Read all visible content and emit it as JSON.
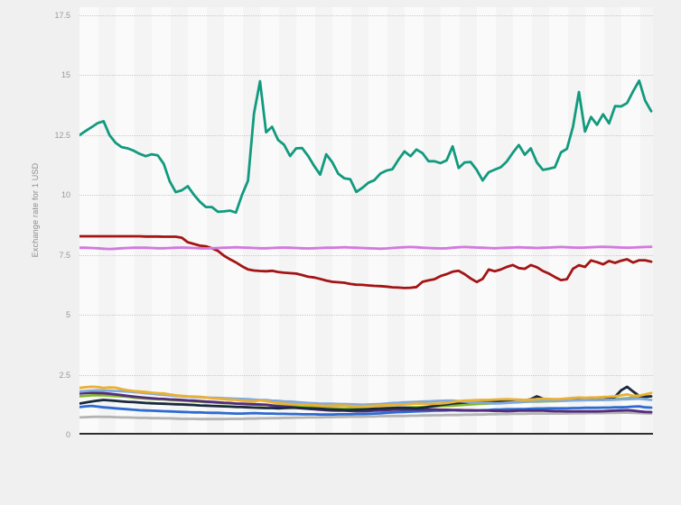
{
  "canvas": {
    "background": "#f0f0f0",
    "plot_stripe_light": "#fafafa",
    "plot_stripe_dark": "#f4f4f4",
    "gridline_color": "#c9c9c9",
    "axis_line_color": "#2e2e2e"
  },
  "yticks": {
    "labels": [
      "17.5",
      "15",
      "12.5",
      "10",
      "7.5",
      "5",
      "2.5",
      "0"
    ]
  },
  "chart_data": {
    "type": "line",
    "title": "",
    "ylabel": "Exchange rate for 1 USD",
    "xlabel": "",
    "ylim": [
      0,
      17.5
    ],
    "yticks": [
      0,
      2.5,
      5,
      7.5,
      10,
      12.5,
      15,
      17.5
    ],
    "grid": "horizontal-dotted",
    "legend": "none",
    "x_axis": {
      "tick_labels_visible": false,
      "num_points": 96
    },
    "series": [
      {
        "name": "gray",
        "color": "#b4b4b4",
        "values": [
          0.72,
          0.73,
          0.74,
          0.75,
          0.74,
          0.74,
          0.73,
          0.72,
          0.72,
          0.71,
          0.7,
          0.7,
          0.69,
          0.69,
          0.68,
          0.68,
          0.67,
          0.66,
          0.66,
          0.66,
          0.65,
          0.65,
          0.65,
          0.65,
          0.65,
          0.66,
          0.66,
          0.66,
          0.67,
          0.67,
          0.68,
          0.68,
          0.69,
          0.69,
          0.7,
          0.7,
          0.71,
          0.71,
          0.72,
          0.72,
          0.72,
          0.73,
          0.73,
          0.74,
          0.74,
          0.75,
          0.75,
          0.75,
          0.76,
          0.76,
          0.77,
          0.77,
          0.78,
          0.78,
          0.78,
          0.79,
          0.79,
          0.8,
          0.8,
          0.81,
          0.81,
          0.82,
          0.82,
          0.82,
          0.83,
          0.83,
          0.84,
          0.84,
          0.85,
          0.85,
          0.86,
          0.86,
          0.87,
          0.87,
          0.87,
          0.88,
          0.88,
          0.88,
          0.88,
          0.88,
          0.88,
          0.88,
          0.89,
          0.89,
          0.89,
          0.9,
          0.9,
          0.9,
          0.91,
          0.91,
          0.92,
          0.92,
          0.91,
          0.9,
          0.89,
          0.88
        ]
      },
      {
        "name": "blue",
        "color": "#2e6bd0",
        "values": [
          1.15,
          1.18,
          1.2,
          1.17,
          1.14,
          1.12,
          1.1,
          1.08,
          1.06,
          1.04,
          1.02,
          1.01,
          1.0,
          0.99,
          0.98,
          0.97,
          0.96,
          0.95,
          0.94,
          0.93,
          0.93,
          0.92,
          0.91,
          0.91,
          0.9,
          0.89,
          0.88,
          0.88,
          0.89,
          0.9,
          0.89,
          0.88,
          0.88,
          0.87,
          0.87,
          0.86,
          0.86,
          0.85,
          0.85,
          0.85,
          0.84,
          0.84,
          0.84,
          0.85,
          0.85,
          0.85,
          0.86,
          0.86,
          0.87,
          0.88,
          0.89,
          0.91,
          0.93,
          0.94,
          0.95,
          0.96,
          0.97,
          0.98,
          0.99,
          1.0,
          1.0,
          1.01,
          1.02,
          1.01,
          1.01,
          1.0,
          1.01,
          1.02,
          1.03,
          1.05,
          1.05,
          1.06,
          1.06,
          1.07,
          1.07,
          1.08,
          1.09,
          1.09,
          1.1,
          1.1,
          1.1,
          1.1,
          1.11,
          1.11,
          1.12,
          1.12,
          1.12,
          1.13,
          1.13,
          1.14,
          1.14,
          1.15,
          1.17,
          1.18,
          1.14,
          1.13
        ]
      },
      {
        "name": "apple-green",
        "color": "#83b828",
        "values": [
          1.6,
          1.62,
          1.64,
          1.65,
          1.64,
          1.63,
          1.61,
          1.6,
          1.58,
          1.55,
          1.53,
          1.51,
          1.49,
          1.48,
          1.47,
          1.45,
          1.44,
          1.42,
          1.41,
          1.39,
          1.38,
          1.36,
          1.35,
          1.33,
          1.32,
          1.31,
          1.3,
          1.28,
          1.27,
          1.26,
          1.25,
          1.24,
          1.22,
          1.21,
          1.19,
          1.18,
          1.17,
          1.15,
          1.14,
          1.13,
          1.11,
          1.11,
          1.1,
          1.1,
          1.09,
          1.09,
          1.08,
          1.08,
          1.08,
          1.09,
          1.1,
          1.11,
          1.12,
          1.12,
          1.13,
          1.14,
          1.14,
          1.15,
          1.16,
          1.17,
          1.19,
          1.2,
          1.21,
          1.23,
          1.25,
          1.26,
          1.28,
          1.29,
          1.3,
          1.31,
          1.32,
          1.33,
          1.34,
          1.35,
          1.37,
          1.38,
          1.38,
          1.39,
          1.4,
          1.4,
          1.41,
          1.42,
          1.43,
          1.44,
          1.44,
          1.45,
          1.46,
          1.47,
          1.48,
          1.49,
          1.5,
          1.52,
          1.53,
          1.55,
          1.58,
          1.6
        ]
      },
      {
        "name": "purple",
        "color": "#542c7d",
        "values": [
          1.72,
          1.74,
          1.75,
          1.74,
          1.73,
          1.71,
          1.68,
          1.65,
          1.62,
          1.59,
          1.56,
          1.54,
          1.52,
          1.5,
          1.49,
          1.47,
          1.46,
          1.45,
          1.43,
          1.42,
          1.4,
          1.38,
          1.37,
          1.35,
          1.33,
          1.32,
          1.3,
          1.29,
          1.28,
          1.27,
          1.26,
          1.25,
          1.22,
          1.19,
          1.17,
          1.15,
          1.12,
          1.1,
          1.08,
          1.06,
          1.04,
          1.02,
          1.01,
          1.0,
          1.0,
          0.99,
          0.98,
          0.98,
          0.99,
          1.0,
          1.01,
          1.02,
          1.04,
          1.05,
          1.05,
          1.05,
          1.05,
          1.05,
          1.05,
          1.05,
          1.04,
          1.04,
          1.03,
          1.03,
          1.02,
          1.02,
          1.01,
          1.01,
          1.0,
          0.99,
          0.99,
          0.98,
          0.99,
          1.0,
          1.0,
          1.0,
          1.0,
          1.0,
          0.99,
          0.98,
          0.98,
          0.97,
          0.97,
          0.97,
          0.97,
          0.97,
          0.97,
          0.98,
          0.99,
          1.0,
          1.01,
          1.02,
          1.0,
          0.97,
          0.95,
          0.94
        ]
      },
      {
        "name": "navy",
        "color": "#182a3d",
        "values": [
          1.3,
          1.34,
          1.38,
          1.42,
          1.45,
          1.43,
          1.41,
          1.39,
          1.37,
          1.36,
          1.34,
          1.32,
          1.31,
          1.3,
          1.29,
          1.28,
          1.27,
          1.26,
          1.25,
          1.24,
          1.22,
          1.21,
          1.2,
          1.19,
          1.18,
          1.17,
          1.16,
          1.15,
          1.14,
          1.13,
          1.12,
          1.11,
          1.11,
          1.1,
          1.11,
          1.12,
          1.12,
          1.11,
          1.1,
          1.09,
          1.08,
          1.06,
          1.05,
          1.04,
          1.03,
          1.03,
          1.04,
          1.05,
          1.06,
          1.08,
          1.09,
          1.1,
          1.11,
          1.12,
          1.12,
          1.11,
          1.1,
          1.12,
          1.16,
          1.2,
          1.24,
          1.27,
          1.3,
          1.32,
          1.34,
          1.37,
          1.38,
          1.4,
          1.41,
          1.42,
          1.41,
          1.39,
          1.38,
          1.4,
          1.44,
          1.48,
          1.6,
          1.5,
          1.43,
          1.44,
          1.45,
          1.45,
          1.46,
          1.48,
          1.5,
          1.52,
          1.48,
          1.45,
          1.5,
          1.58,
          1.85,
          2.0,
          1.8,
          1.62,
          1.58,
          1.6
        ]
      },
      {
        "name": "light-blue",
        "color": "#80aade",
        "values": [
          1.8,
          1.82,
          1.84,
          1.85,
          1.84,
          1.83,
          1.82,
          1.81,
          1.8,
          1.78,
          1.76,
          1.73,
          1.71,
          1.68,
          1.66,
          1.64,
          1.62,
          1.6,
          1.59,
          1.57,
          1.56,
          1.55,
          1.54,
          1.53,
          1.52,
          1.51,
          1.5,
          1.49,
          1.48,
          1.46,
          1.45,
          1.44,
          1.42,
          1.41,
          1.39,
          1.38,
          1.36,
          1.34,
          1.32,
          1.31,
          1.29,
          1.29,
          1.29,
          1.28,
          1.28,
          1.27,
          1.26,
          1.25,
          1.26,
          1.27,
          1.28,
          1.3,
          1.32,
          1.33,
          1.35,
          1.36,
          1.37,
          1.38,
          1.39,
          1.4,
          1.41,
          1.42,
          1.42,
          1.4,
          1.38,
          1.36,
          1.34,
          1.33,
          1.32,
          1.3,
          1.31,
          1.33,
          1.35,
          1.37,
          1.38,
          1.39,
          1.4,
          1.41,
          1.42,
          1.42,
          1.42,
          1.43,
          1.43,
          1.43,
          1.44,
          1.44,
          1.44,
          1.45,
          1.45,
          1.46,
          1.47,
          1.48,
          1.49,
          1.5,
          1.48,
          1.45
        ]
      },
      {
        "name": "yellow",
        "color": "#eab033",
        "values": [
          1.95,
          1.98,
          2.0,
          1.99,
          1.95,
          1.97,
          1.96,
          1.9,
          1.85,
          1.82,
          1.8,
          1.78,
          1.75,
          1.73,
          1.72,
          1.68,
          1.64,
          1.62,
          1.6,
          1.59,
          1.58,
          1.55,
          1.52,
          1.5,
          1.48,
          1.46,
          1.45,
          1.42,
          1.4,
          1.38,
          1.43,
          1.4,
          1.35,
          1.33,
          1.3,
          1.28,
          1.27,
          1.26,
          1.25,
          1.23,
          1.21,
          1.2,
          1.21,
          1.22,
          1.22,
          1.2,
          1.18,
          1.19,
          1.2,
          1.21,
          1.22,
          1.23,
          1.24,
          1.25,
          1.26,
          1.28,
          1.3,
          1.29,
          1.28,
          1.29,
          1.3,
          1.32,
          1.36,
          1.4,
          1.42,
          1.43,
          1.44,
          1.45,
          1.45,
          1.46,
          1.47,
          1.48,
          1.47,
          1.46,
          1.45,
          1.46,
          1.48,
          1.5,
          1.49,
          1.48,
          1.49,
          1.51,
          1.53,
          1.55,
          1.54,
          1.55,
          1.55,
          1.57,
          1.58,
          1.6,
          1.64,
          1.68,
          1.62,
          1.63,
          1.68,
          1.74
        ]
      },
      {
        "name": "dark-red",
        "color": "#a31414",
        "values": [
          8.28,
          8.28,
          8.28,
          8.28,
          8.28,
          8.28,
          8.28,
          8.28,
          8.28,
          8.28,
          8.28,
          8.27,
          8.27,
          8.27,
          8.26,
          8.26,
          8.26,
          8.22,
          8.03,
          7.96,
          7.89,
          7.86,
          7.78,
          7.67,
          7.47,
          7.32,
          7.19,
          7.03,
          6.9,
          6.85,
          6.83,
          6.82,
          6.84,
          6.79,
          6.76,
          6.74,
          6.72,
          6.66,
          6.59,
          6.56,
          6.5,
          6.43,
          6.38,
          6.36,
          6.34,
          6.29,
          6.26,
          6.25,
          6.23,
          6.21,
          6.2,
          6.18,
          6.15,
          6.14,
          6.12,
          6.13,
          6.16,
          6.38,
          6.44,
          6.49,
          6.62,
          6.7,
          6.8,
          6.84,
          6.7,
          6.52,
          6.37,
          6.5,
          6.89,
          6.82,
          6.89,
          7.0,
          7.08,
          6.95,
          6.92,
          7.08,
          6.99,
          6.83,
          6.72,
          6.58,
          6.45,
          6.49,
          6.92,
          7.07,
          7.0,
          7.27,
          7.2,
          7.11,
          7.25,
          7.17,
          7.26,
          7.32,
          7.18,
          7.28,
          7.28,
          7.22
        ]
      },
      {
        "name": "pink",
        "color": "#d279de",
        "values": [
          7.8,
          7.8,
          7.79,
          7.78,
          7.76,
          7.75,
          7.76,
          7.78,
          7.79,
          7.8,
          7.8,
          7.8,
          7.79,
          7.78,
          7.78,
          7.79,
          7.8,
          7.81,
          7.8,
          7.79,
          7.78,
          7.77,
          7.78,
          7.79,
          7.8,
          7.81,
          7.82,
          7.81,
          7.8,
          7.79,
          7.78,
          7.78,
          7.79,
          7.8,
          7.81,
          7.8,
          7.79,
          7.78,
          7.77,
          7.78,
          7.79,
          7.8,
          7.8,
          7.81,
          7.82,
          7.81,
          7.8,
          7.79,
          7.78,
          7.77,
          7.76,
          7.77,
          7.79,
          7.81,
          7.82,
          7.83,
          7.82,
          7.8,
          7.79,
          7.78,
          7.77,
          7.78,
          7.8,
          7.82,
          7.83,
          7.82,
          7.81,
          7.8,
          7.79,
          7.78,
          7.79,
          7.8,
          7.81,
          7.82,
          7.81,
          7.8,
          7.79,
          7.8,
          7.81,
          7.82,
          7.83,
          7.82,
          7.81,
          7.8,
          7.81,
          7.82,
          7.83,
          7.84,
          7.83,
          7.82,
          7.81,
          7.8,
          7.81,
          7.82,
          7.83,
          7.84
        ]
      },
      {
        "name": "teal",
        "color": "#119a7e",
        "values": [
          12.5,
          12.67,
          12.83,
          13.0,
          13.08,
          12.5,
          12.18,
          12.0,
          11.95,
          11.85,
          11.72,
          11.62,
          11.7,
          11.66,
          11.3,
          10.57,
          10.12,
          10.2,
          10.37,
          10.02,
          9.72,
          9.5,
          9.5,
          9.3,
          9.32,
          9.35,
          9.27,
          10.0,
          10.6,
          13.4,
          14.75,
          12.62,
          12.85,
          12.3,
          12.1,
          11.63,
          11.95,
          11.96,
          11.63,
          11.21,
          10.85,
          11.7,
          11.37,
          10.89,
          10.7,
          10.66,
          10.13,
          10.3,
          10.51,
          10.62,
          10.9,
          11.02,
          11.08,
          11.47,
          11.82,
          11.62,
          11.9,
          11.75,
          11.41,
          11.41,
          11.33,
          11.45,
          12.03,
          11.13,
          11.36,
          11.38,
          11.05,
          10.61,
          10.95,
          11.06,
          11.16,
          11.4,
          11.76,
          12.09,
          11.68,
          11.95,
          11.36,
          11.05,
          11.1,
          11.16,
          11.78,
          11.93,
          12.85,
          14.3,
          12.65,
          13.26,
          12.93,
          13.37,
          12.99,
          13.71,
          13.7,
          13.84,
          14.33,
          14.77,
          13.94,
          13.5
        ]
      }
    ]
  }
}
